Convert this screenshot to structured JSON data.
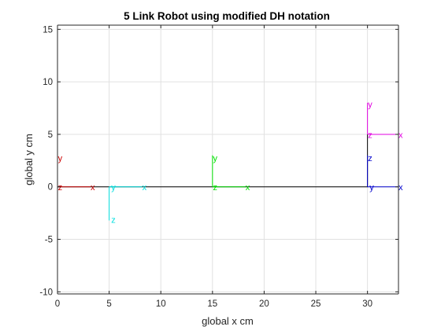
{
  "chart_data": {
    "type": "line",
    "title": "5 Link Robot using modified DH notation",
    "xlabel": "global x cm",
    "ylabel": "global y cm",
    "xlim": [
      0,
      33
    ],
    "ylim": [
      -10.2,
      15.4
    ],
    "xticks": [
      0,
      5,
      10,
      15,
      20,
      25,
      30
    ],
    "yticks": [
      -10,
      -5,
      0,
      5,
      10,
      15
    ],
    "grid": true,
    "link_chain": {
      "color": "#000000",
      "points": [
        [
          0,
          0
        ],
        [
          5,
          0
        ],
        [
          15,
          0
        ],
        [
          30,
          0
        ],
        [
          30,
          5
        ]
      ]
    },
    "frames": [
      {
        "color": "#cc0000",
        "axes": [
          {
            "label": "x",
            "from": [
              0,
              0
            ],
            "to": [
              3.2,
              0
            ],
            "label_at": [
              3.2,
              0
            ]
          },
          {
            "label": "y",
            "from": [
              0,
              0
            ],
            "to": [
              0,
              3.0
            ],
            "label_at": [
              0.05,
              2.8
            ]
          },
          {
            "label": "z",
            "from": [
              0,
              0
            ],
            "to": [
              0,
              0
            ],
            "label_at": [
              0.05,
              0
            ]
          }
        ]
      },
      {
        "color": "#00e0e0",
        "axes": [
          {
            "label": "x",
            "from": [
              5,
              0
            ],
            "to": [
              8.2,
              0
            ],
            "label_at": [
              8.2,
              0
            ]
          },
          {
            "label": "y",
            "from": [
              5,
              0
            ],
            "to": [
              5,
              0
            ],
            "label_at": [
              5.2,
              0
            ]
          },
          {
            "label": "z",
            "from": [
              5,
              0
            ],
            "to": [
              5,
              -3.2
            ],
            "label_at": [
              5.2,
              -3.1
            ]
          }
        ]
      },
      {
        "color": "#00e000",
        "axes": [
          {
            "label": "x",
            "from": [
              15,
              0
            ],
            "to": [
              18.2,
              0
            ],
            "label_at": [
              18.2,
              0
            ]
          },
          {
            "label": "y",
            "from": [
              15,
              0
            ],
            "to": [
              15,
              3.0
            ],
            "label_at": [
              15.05,
              2.8
            ]
          },
          {
            "label": "z",
            "from": [
              15,
              0
            ],
            "to": [
              15,
              0
            ],
            "label_at": [
              15.05,
              0
            ]
          }
        ]
      },
      {
        "color": "#0000cc",
        "axes": [
          {
            "label": "x",
            "from": [
              30,
              0
            ],
            "to": [
              33,
              0
            ],
            "label_at": [
              33,
              0
            ]
          },
          {
            "label": "y",
            "from": [
              30,
              0
            ],
            "to": [
              30,
              0
            ],
            "label_at": [
              30.2,
              0
            ]
          },
          {
            "label": "z",
            "from": [
              30,
              0
            ],
            "to": [
              30,
              3.0
            ],
            "label_at": [
              30.05,
              2.8
            ]
          }
        ]
      },
      {
        "color": "#e000e0",
        "axes": [
          {
            "label": "x",
            "from": [
              30,
              5
            ],
            "to": [
              33,
              5
            ],
            "label_at": [
              33,
              5
            ]
          },
          {
            "label": "y",
            "from": [
              30,
              5
            ],
            "to": [
              30,
              8.0
            ],
            "label_at": [
              30.05,
              7.9
            ]
          },
          {
            "label": "z",
            "from": [
              30,
              5
            ],
            "to": [
              30,
              5
            ],
            "label_at": [
              30.05,
              5
            ]
          }
        ]
      }
    ]
  }
}
